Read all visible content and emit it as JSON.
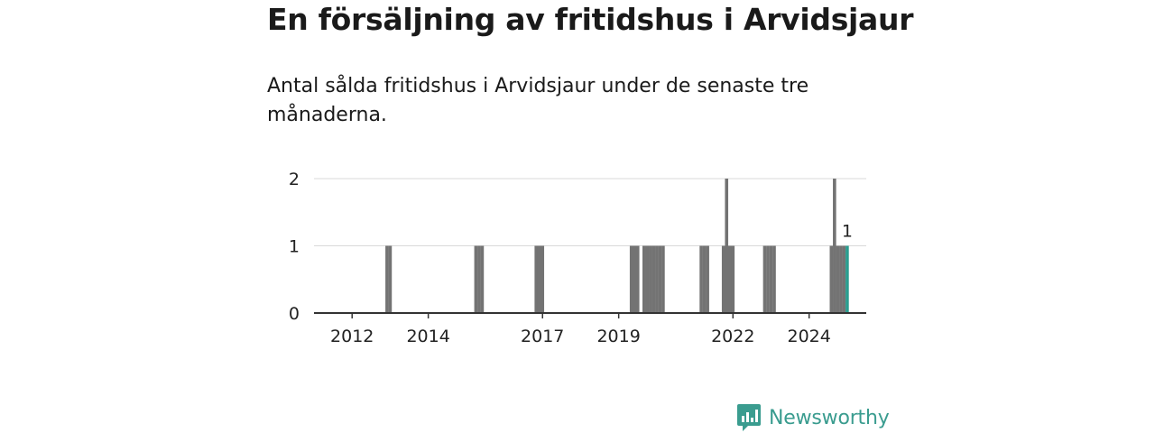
{
  "header": {
    "title": "En försäljning av fritidshus i Arvidsjaur",
    "subtitle": "Antal sålda fritidshus i Arvidsjaur under de senaste tre månaderna."
  },
  "brand": {
    "name": "Newsworthy",
    "color": "#3a9c8f",
    "icon": "newsworthy-logo-icon"
  },
  "colors": {
    "bar": "#737373",
    "highlight": "#2a9d8f",
    "axis": "#333333",
    "grid": "#d9d9d9"
  },
  "chart_data": {
    "type": "bar",
    "title": "",
    "xlabel": "",
    "ylabel": "",
    "ylim": [
      0,
      2
    ],
    "y_ticks": [
      "0",
      "1",
      "2"
    ],
    "x_ticks": [
      {
        "label": "2012",
        "date": "2012-01"
      },
      {
        "label": "2014",
        "date": "2014-01"
      },
      {
        "label": "2017",
        "date": "2017-01"
      },
      {
        "label": "2019",
        "date": "2019-01"
      },
      {
        "label": "2022",
        "date": "2022-01"
      },
      {
        "label": "2024",
        "date": "2024-01"
      }
    ],
    "x_range": [
      "2011-01",
      "2025-07"
    ],
    "series": [
      {
        "points": [
          {
            "date": "2012-12",
            "value": 1
          },
          {
            "date": "2013-01",
            "value": 1
          },
          {
            "date": "2015-04",
            "value": 1
          },
          {
            "date": "2015-05",
            "value": 1
          },
          {
            "date": "2015-06",
            "value": 1
          },
          {
            "date": "2016-11",
            "value": 1
          },
          {
            "date": "2016-12",
            "value": 1
          },
          {
            "date": "2017-01",
            "value": 1
          },
          {
            "date": "2019-05",
            "value": 1
          },
          {
            "date": "2019-06",
            "value": 1
          },
          {
            "date": "2019-07",
            "value": 1
          },
          {
            "date": "2019-09",
            "value": 1
          },
          {
            "date": "2019-10",
            "value": 1
          },
          {
            "date": "2019-11",
            "value": 1
          },
          {
            "date": "2019-12",
            "value": 1
          },
          {
            "date": "2020-01",
            "value": 1
          },
          {
            "date": "2020-02",
            "value": 1
          },
          {
            "date": "2020-03",
            "value": 1
          },
          {
            "date": "2021-03",
            "value": 1
          },
          {
            "date": "2021-04",
            "value": 1
          },
          {
            "date": "2021-05",
            "value": 1
          },
          {
            "date": "2021-10",
            "value": 1
          },
          {
            "date": "2021-11",
            "value": 2
          },
          {
            "date": "2021-12",
            "value": 1
          },
          {
            "date": "2022-01",
            "value": 1
          },
          {
            "date": "2022-11",
            "value": 1
          },
          {
            "date": "2022-12",
            "value": 1
          },
          {
            "date": "2023-01",
            "value": 1
          },
          {
            "date": "2023-02",
            "value": 1
          },
          {
            "date": "2024-08",
            "value": 1
          },
          {
            "date": "2024-09",
            "value": 2
          },
          {
            "date": "2024-10",
            "value": 1
          },
          {
            "date": "2024-11",
            "value": 1
          },
          {
            "date": "2024-12",
            "value": 1
          },
          {
            "date": "2025-01",
            "value": 1,
            "highlight": true,
            "label": "1"
          }
        ]
      }
    ]
  }
}
